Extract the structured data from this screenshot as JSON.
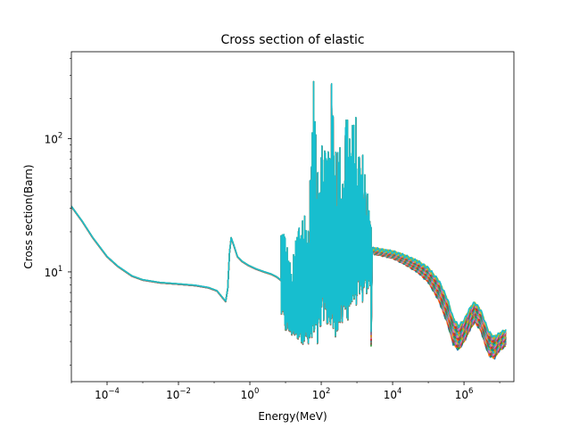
{
  "chart_data": {
    "type": "line",
    "title": "Cross section of elastic",
    "xlabel": "Energy(MeV)",
    "ylabel": "Cross section(Barn)",
    "xscale": "log",
    "yscale": "log",
    "xlim": [
      1e-05,
      25000000.0
    ],
    "ylim": [
      1.5,
      450
    ],
    "legend": "none",
    "grid": false,
    "x_ticks": [
      {
        "base": "10",
        "exp": "−4",
        "value": 0.0001
      },
      {
        "base": "10",
        "exp": "−2",
        "value": 0.01
      },
      {
        "base": "10",
        "exp": "0",
        "value": 1
      },
      {
        "base": "10",
        "exp": "2",
        "value": 100
      },
      {
        "base": "10",
        "exp": "4",
        "value": 10000
      },
      {
        "base": "10",
        "exp": "6",
        "value": 1000000
      }
    ],
    "y_ticks": [
      {
        "base": "10",
        "exp": "1",
        "value": 10
      },
      {
        "base": "10",
        "exp": "2",
        "value": 100
      }
    ],
    "colors": [
      "#1f77b4",
      "#ff7f0e",
      "#2ca02c",
      "#d62728",
      "#9467bd",
      "#8c564b",
      "#e377c2",
      "#7f7f7f",
      "#bcbd22",
      "#17becf"
    ],
    "base_curve": [
      [
        1e-05,
        31
      ],
      [
        2e-05,
        24
      ],
      [
        4e-05,
        18
      ],
      [
        0.0001,
        13
      ],
      [
        0.0002,
        11
      ],
      [
        0.0005,
        9.3
      ],
      [
        0.001,
        8.7
      ],
      [
        0.003,
        8.3
      ],
      [
        0.01,
        8.1
      ],
      [
        0.03,
        7.9
      ],
      [
        0.07,
        7.6
      ],
      [
        0.12,
        7.2
      ],
      [
        0.18,
        6.3
      ],
      [
        0.21,
        6.0
      ],
      [
        0.24,
        7.5
      ],
      [
        0.27,
        14
      ],
      [
        0.3,
        18
      ],
      [
        0.35,
        16
      ],
      [
        0.45,
        13
      ],
      [
        0.6,
        12
      ],
      [
        0.9,
        11.2
      ],
      [
        1.5,
        10.5
      ],
      [
        2.5,
        10.0
      ],
      [
        4.0,
        9.6
      ],
      [
        5.5,
        9.2
      ],
      [
        6.5,
        8.9
      ],
      [
        7.5,
        8.6
      ]
    ],
    "resonance_envelope": {
      "x_range": [
        7.5,
        2500
      ],
      "peaks": [
        [
          9,
          24
        ],
        [
          15,
          10
        ],
        [
          20,
          22
        ],
        [
          28,
          36
        ],
        [
          45,
          28
        ],
        [
          60,
          270
        ],
        [
          70,
          260
        ],
        [
          90,
          95
        ],
        [
          120,
          150
        ],
        [
          150,
          100
        ],
        [
          180,
          340
        ],
        [
          220,
          200
        ],
        [
          260,
          150
        ],
        [
          300,
          105
        ],
        [
          400,
          80
        ],
        [
          500,
          240
        ],
        [
          700,
          130
        ],
        [
          900,
          160
        ],
        [
          1200,
          90
        ],
        [
          1600,
          80
        ],
        [
          2000,
          45
        ],
        [
          2400,
          24
        ]
      ],
      "dips": [
        [
          8,
          4.5
        ],
        [
          10,
          3.5
        ],
        [
          18,
          3.2
        ],
        [
          30,
          2.9
        ],
        [
          45,
          2.6
        ],
        [
          80,
          2.5
        ],
        [
          120,
          4.5
        ],
        [
          200,
          3.0
        ],
        [
          300,
          3.5
        ],
        [
          500,
          4.0
        ],
        [
          800,
          5.5
        ],
        [
          1500,
          5.8
        ],
        [
          2500,
          8
        ]
      ]
    },
    "high_energy_band": [
      [
        2500,
        14.5,
        0.6
      ],
      [
        5000,
        14.0,
        0.6
      ],
      [
        10000,
        13.5,
        0.7
      ],
      [
        20000,
        12.5,
        0.9
      ],
      [
        50000,
        11.0,
        1.1
      ],
      [
        100000,
        9.5,
        1.3
      ],
      [
        200000,
        7.2,
        1.5
      ],
      [
        350000,
        5.0,
        1.3
      ],
      [
        500000,
        3.6,
        1.0
      ],
      [
        700000,
        3.2,
        0.8
      ],
      [
        1000000,
        3.6,
        0.8
      ],
      [
        1500000,
        4.5,
        1.0
      ],
      [
        2000000,
        5.0,
        1.0
      ],
      [
        3000000,
        4.3,
        0.9
      ],
      [
        4000000,
        3.4,
        0.8
      ],
      [
        5000000,
        2.9,
        0.7
      ],
      [
        7000000,
        2.7,
        0.6
      ],
      [
        10000000,
        3.0,
        0.5
      ],
      [
        15000000,
        3.2,
        0.5
      ]
    ]
  }
}
